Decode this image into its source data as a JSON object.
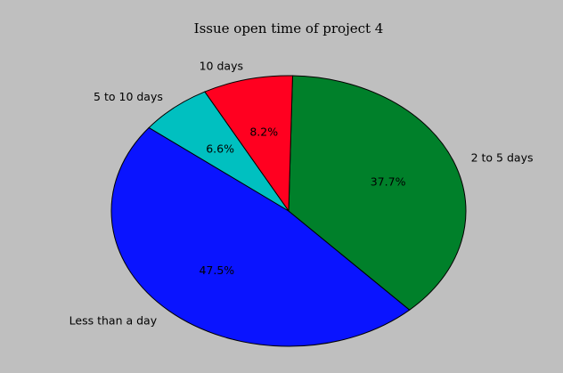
{
  "chart_data": {
    "type": "pie",
    "title": "Issue open time of project 4",
    "slices": [
      {
        "label": "Less than a day",
        "percent": 47.5,
        "value_label": "47.5%",
        "color": "#0a14ff"
      },
      {
        "label": "2 to 5 days",
        "percent": 37.7,
        "value_label": "37.7%",
        "color": "#00802a"
      },
      {
        "label": "10 days",
        "percent": 8.2,
        "value_label": "8.2%",
        "color": "#ff0020"
      },
      {
        "label": "5 to 10 days",
        "percent": 6.6,
        "value_label": "6.6%",
        "color": "#00c0c0"
      }
    ],
    "start_angle_deg": 142,
    "direction": "counterclockwise",
    "legend": "none"
  }
}
